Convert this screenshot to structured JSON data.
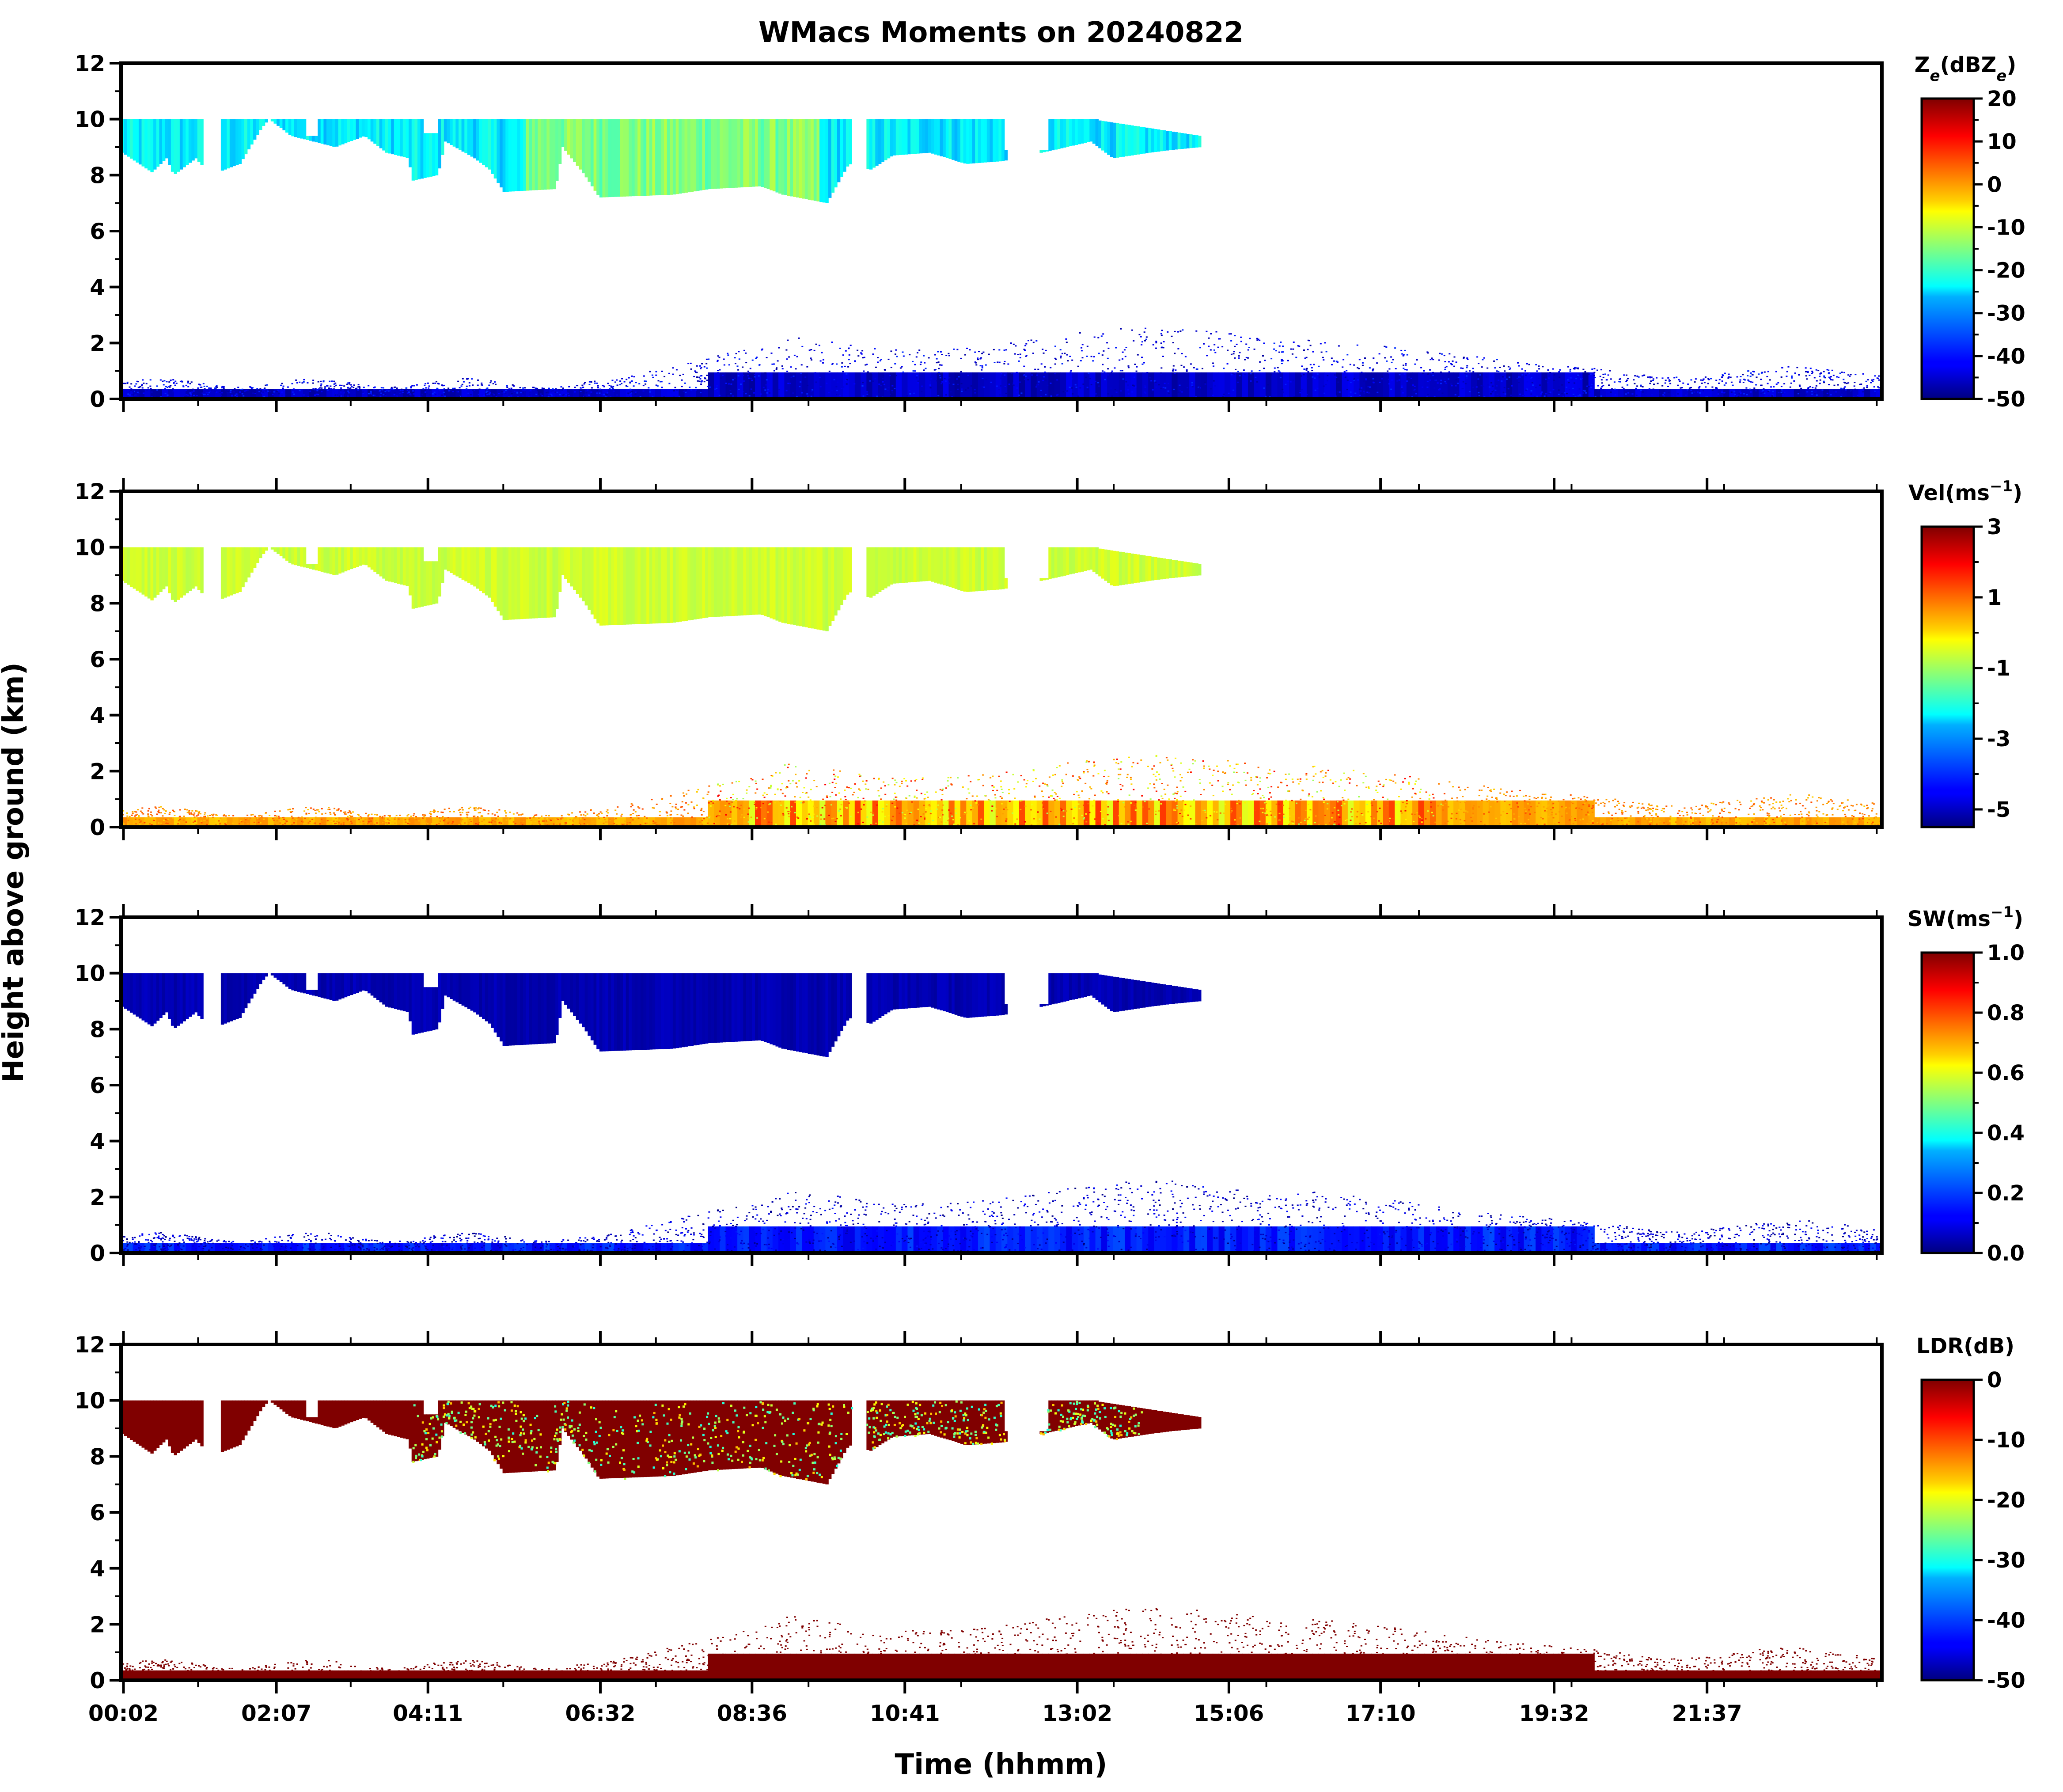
{
  "figure": {
    "title": "WMacs Moments on 20240822",
    "ylabel": "Height above ground (km)",
    "xlabel": "Time (hhmm)"
  },
  "chart_data": [
    {
      "type": "heatmap",
      "panel": "reflectivity",
      "colorbar_label": "Ze(dBZe)",
      "colorbar_label_main": "Z",
      "colorbar_label_sub": "e",
      "colorbar_label_rest": "(dBZ",
      "colorbar_label_sub2": "e",
      "colorbar_label_end": ")",
      "colorbar_range": [
        -50,
        20
      ],
      "colorbar_ticks": [
        "20",
        "10",
        "0",
        "-10",
        "-20",
        "-30",
        "-40",
        "-50"
      ],
      "colormap": "jet",
      "ylim": [
        0,
        12
      ],
      "yticks": [
        "0",
        "2",
        "4",
        "6",
        "8",
        "10",
        "12"
      ],
      "cloud_layer": {
        "top_km": 10,
        "base_km_range": [
          7.0,
          9.0
        ],
        "end_time": "14:40",
        "typical_value": -25
      },
      "boundary_layer": {
        "top_km_range": [
          0.5,
          2.8
        ],
        "typical_value": -45
      }
    },
    {
      "type": "heatmap",
      "panel": "velocity",
      "colorbar_label": "Vel(ms−1)",
      "colorbar_label_main": "Vel(ms",
      "colorbar_label_sup": "−1",
      "colorbar_label_end": ")",
      "colorbar_range": [
        -5.5,
        3
      ],
      "colorbar_ticks": [
        "3",
        "1",
        "-1",
        "-3",
        "-5"
      ],
      "colormap": "jet",
      "ylim": [
        0,
        12
      ],
      "yticks": [
        "0",
        "2",
        "4",
        "6",
        "8",
        "10",
        "12"
      ],
      "cloud_layer": {
        "top_km": 10,
        "base_km_range": [
          7.0,
          9.0
        ],
        "end_time": "14:40",
        "typical_value": -0.6
      },
      "boundary_layer": {
        "top_km_range": [
          0.5,
          2.8
        ],
        "typical_value": 0.5
      }
    },
    {
      "type": "heatmap",
      "panel": "spectrum_width",
      "colorbar_label": "SW(ms−1)",
      "colorbar_label_main": "SW(ms",
      "colorbar_label_sup": "−1",
      "colorbar_label_end": ")",
      "colorbar_range": [
        0,
        1
      ],
      "colorbar_ticks": [
        "1.0",
        "0.8",
        "0.6",
        "0.4",
        "0.2",
        "0.0"
      ],
      "colormap": "jet",
      "ylim": [
        0,
        12
      ],
      "yticks": [
        "0",
        "2",
        "4",
        "6",
        "8",
        "10",
        "12"
      ],
      "cloud_layer": {
        "top_km": 10,
        "base_km_range": [
          7.0,
          9.0
        ],
        "end_time": "14:40",
        "typical_value": 0.05
      },
      "boundary_layer": {
        "top_km_range": [
          0.5,
          2.8
        ],
        "typical_value": 0.1
      }
    },
    {
      "type": "heatmap",
      "panel": "ldr",
      "colorbar_label": "LDR(dB)",
      "colorbar_range": [
        -50,
        0
      ],
      "colorbar_ticks": [
        "0",
        "-10",
        "-20",
        "-30",
        "-40",
        "-50"
      ],
      "colormap": "jet",
      "ylim": [
        0,
        12
      ],
      "yticks": [
        "0",
        "2",
        "4",
        "6",
        "8",
        "10",
        "12"
      ],
      "xticks": [
        "00:02",
        "02:07",
        "04:11",
        "06:32",
        "08:36",
        "10:41",
        "13:02",
        "15:06",
        "17:10",
        "19:32",
        "21:37"
      ],
      "cloud_layer": {
        "top_km": 10,
        "base_km_range": [
          7.0,
          9.0
        ],
        "end_time": "14:40",
        "typical_value": 0
      },
      "boundary_layer": {
        "top_km_range": [
          0.5,
          2.8
        ],
        "typical_value": 0
      }
    }
  ],
  "colors": {
    "jet": [
      "#00007f",
      "#0000ff",
      "#0080ff",
      "#00ffff",
      "#80ff80",
      "#ffff00",
      "#ff8000",
      "#ff0000",
      "#7f0000"
    ]
  }
}
